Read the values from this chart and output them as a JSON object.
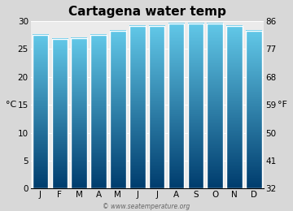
{
  "title": "Cartagena water temp",
  "months": [
    "J",
    "F",
    "M",
    "A",
    "M",
    "J",
    "J",
    "A",
    "S",
    "O",
    "N",
    "D"
  ],
  "temps_c": [
    27.5,
    26.8,
    27.0,
    27.5,
    28.3,
    29.1,
    29.1,
    29.5,
    29.5,
    29.5,
    29.1,
    28.3
  ],
  "ylim_c": [
    0,
    30
  ],
  "yticks_c": [
    0,
    5,
    10,
    15,
    20,
    25,
    30
  ],
  "yticks_f": [
    32,
    41,
    50,
    59,
    68,
    77,
    86
  ],
  "ylabel_left": "°C",
  "ylabel_right": "°F",
  "color_top": "#62c8e8",
  "color_bottom": "#003d6e",
  "background_color": "#d8d8d8",
  "plot_bg_color": "#ebebeb",
  "watermark": "© www.seatemperature.org",
  "title_fontsize": 11,
  "axis_fontsize": 7.5,
  "label_fontsize": 8
}
